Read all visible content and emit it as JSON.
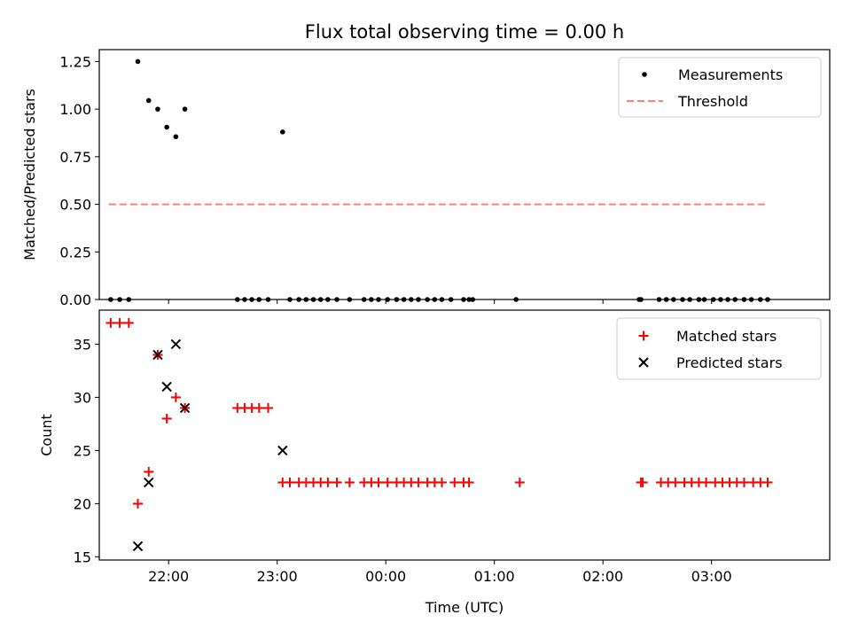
{
  "chart_data": {
    "title": "Flux total observing time = 0.00 h",
    "xlabel": "Time (UTC)",
    "x_tick_labels": [
      "22:00",
      "23:00",
      "00:00",
      "01:00",
      "02:00",
      "03:00"
    ],
    "top": {
      "type": "scatter",
      "ylabel": "Matched/Predicted stars",
      "ylim": [
        0,
        1.3125
      ],
      "y_ticks": [
        "0.00",
        "0.25",
        "0.50",
        "0.75",
        "1.00",
        "1.25"
      ],
      "legend_position": "top-right",
      "legend": [
        "Measurements",
        "Threshold"
      ],
      "threshold": {
        "value": 0.5,
        "x_start": "21:27",
        "x_end": "03:31",
        "color": "#ff7f7f"
      },
      "measurements": [
        {
          "x": "21:28",
          "y": 0
        },
        {
          "x": "21:33",
          "y": 0
        },
        {
          "x": "21:38",
          "y": 0
        },
        {
          "x": "21:43",
          "y": 1.25
        },
        {
          "x": "21:49",
          "y": 1.045
        },
        {
          "x": "21:54",
          "y": 1.0
        },
        {
          "x": "21:59",
          "y": 0.905
        },
        {
          "x": "22:04",
          "y": 0.855
        },
        {
          "x": "22:09",
          "y": 1.0
        },
        {
          "x": "22:38",
          "y": 0
        },
        {
          "x": "22:42",
          "y": 0
        },
        {
          "x": "22:46",
          "y": 0
        },
        {
          "x": "22:50",
          "y": 0
        },
        {
          "x": "22:55",
          "y": 0
        },
        {
          "x": "23:03",
          "y": 0.88
        },
        {
          "x": "23:07",
          "y": 0
        },
        {
          "x": "23:12",
          "y": 0
        },
        {
          "x": "23:16",
          "y": 0
        },
        {
          "x": "23:20",
          "y": 0
        },
        {
          "x": "23:24",
          "y": 0
        },
        {
          "x": "23:28",
          "y": 0
        },
        {
          "x": "23:33",
          "y": 0
        },
        {
          "x": "23:40",
          "y": 0
        },
        {
          "x": "23:48",
          "y": 0
        },
        {
          "x": "23:52",
          "y": 0
        },
        {
          "x": "23:56",
          "y": 0
        },
        {
          "x": "00:01",
          "y": 0
        },
        {
          "x": "00:06",
          "y": 0
        },
        {
          "x": "00:10",
          "y": 0
        },
        {
          "x": "00:14",
          "y": 0
        },
        {
          "x": "00:18",
          "y": 0
        },
        {
          "x": "00:23",
          "y": 0
        },
        {
          "x": "00:27",
          "y": 0
        },
        {
          "x": "00:31",
          "y": 0
        },
        {
          "x": "00:36",
          "y": 0
        },
        {
          "x": "00:43",
          "y": 0
        },
        {
          "x": "00:46",
          "y": 0
        },
        {
          "x": "00:48",
          "y": 0
        },
        {
          "x": "01:12",
          "y": 0
        },
        {
          "x": "02:20",
          "y": 0
        },
        {
          "x": "02:21",
          "y": 0
        },
        {
          "x": "02:31",
          "y": 0
        },
        {
          "x": "02:35",
          "y": 0
        },
        {
          "x": "02:39",
          "y": 0
        },
        {
          "x": "02:44",
          "y": 0
        },
        {
          "x": "02:48",
          "y": 0
        },
        {
          "x": "02:53",
          "y": 0
        },
        {
          "x": "02:56",
          "y": 0
        },
        {
          "x": "03:01",
          "y": 0
        },
        {
          "x": "03:05",
          "y": 0
        },
        {
          "x": "03:09",
          "y": 0
        },
        {
          "x": "03:13",
          "y": 0
        },
        {
          "x": "03:18",
          "y": 0
        },
        {
          "x": "03:22",
          "y": 0
        },
        {
          "x": "03:27",
          "y": 0
        },
        {
          "x": "03:31",
          "y": 0
        }
      ]
    },
    "bottom": {
      "type": "scatter",
      "ylabel": "Count",
      "ylim": [
        14.7,
        38.2
      ],
      "y_ticks": [
        "15",
        "20",
        "25",
        "30",
        "35"
      ],
      "legend_position": "top-right",
      "legend": [
        "Matched stars",
        "Predicted stars"
      ],
      "colors": {
        "matched": "#ff0000",
        "predicted": "#000000"
      },
      "matched": [
        {
          "x": "21:28",
          "y": 37
        },
        {
          "x": "21:33",
          "y": 37
        },
        {
          "x": "21:38",
          "y": 37
        },
        {
          "x": "21:43",
          "y": 20
        },
        {
          "x": "21:49",
          "y": 23
        },
        {
          "x": "21:54",
          "y": 34
        },
        {
          "x": "21:59",
          "y": 28
        },
        {
          "x": "22:04",
          "y": 30
        },
        {
          "x": "22:09",
          "y": 29
        },
        {
          "x": "22:38",
          "y": 29
        },
        {
          "x": "22:42",
          "y": 29
        },
        {
          "x": "22:46",
          "y": 29
        },
        {
          "x": "22:50",
          "y": 29
        },
        {
          "x": "22:55",
          "y": 29
        },
        {
          "x": "23:03",
          "y": 22
        },
        {
          "x": "23:07",
          "y": 22
        },
        {
          "x": "23:12",
          "y": 22
        },
        {
          "x": "23:16",
          "y": 22
        },
        {
          "x": "23:20",
          "y": 22
        },
        {
          "x": "23:24",
          "y": 22
        },
        {
          "x": "23:28",
          "y": 22
        },
        {
          "x": "23:33",
          "y": 22
        },
        {
          "x": "23:40",
          "y": 22
        },
        {
          "x": "23:48",
          "y": 22
        },
        {
          "x": "23:52",
          "y": 22
        },
        {
          "x": "23:56",
          "y": 22
        },
        {
          "x": "00:01",
          "y": 22
        },
        {
          "x": "00:06",
          "y": 22
        },
        {
          "x": "00:10",
          "y": 22
        },
        {
          "x": "00:14",
          "y": 22
        },
        {
          "x": "00:18",
          "y": 22
        },
        {
          "x": "00:23",
          "y": 22
        },
        {
          "x": "00:27",
          "y": 22
        },
        {
          "x": "00:31",
          "y": 22
        },
        {
          "x": "00:38",
          "y": 22
        },
        {
          "x": "00:43",
          "y": 22
        },
        {
          "x": "00:46",
          "y": 22
        },
        {
          "x": "01:14",
          "y": 22
        },
        {
          "x": "02:21",
          "y": 22
        },
        {
          "x": "02:22",
          "y": 22
        },
        {
          "x": "02:32",
          "y": 22
        },
        {
          "x": "02:36",
          "y": 22
        },
        {
          "x": "02:40",
          "y": 22
        },
        {
          "x": "02:45",
          "y": 22
        },
        {
          "x": "02:49",
          "y": 22
        },
        {
          "x": "02:53",
          "y": 22
        },
        {
          "x": "02:57",
          "y": 22
        },
        {
          "x": "03:02",
          "y": 22
        },
        {
          "x": "03:06",
          "y": 22
        },
        {
          "x": "03:10",
          "y": 22
        },
        {
          "x": "03:14",
          "y": 22
        },
        {
          "x": "03:18",
          "y": 22
        },
        {
          "x": "03:23",
          "y": 22
        },
        {
          "x": "03:27",
          "y": 22
        },
        {
          "x": "03:31",
          "y": 22
        }
      ],
      "predicted": [
        {
          "x": "21:43",
          "y": 16
        },
        {
          "x": "21:49",
          "y": 22
        },
        {
          "x": "21:54",
          "y": 34
        },
        {
          "x": "21:59",
          "y": 31
        },
        {
          "x": "22:04",
          "y": 35
        },
        {
          "x": "22:09",
          "y": 29
        },
        {
          "x": "23:03",
          "y": 25
        }
      ]
    }
  }
}
